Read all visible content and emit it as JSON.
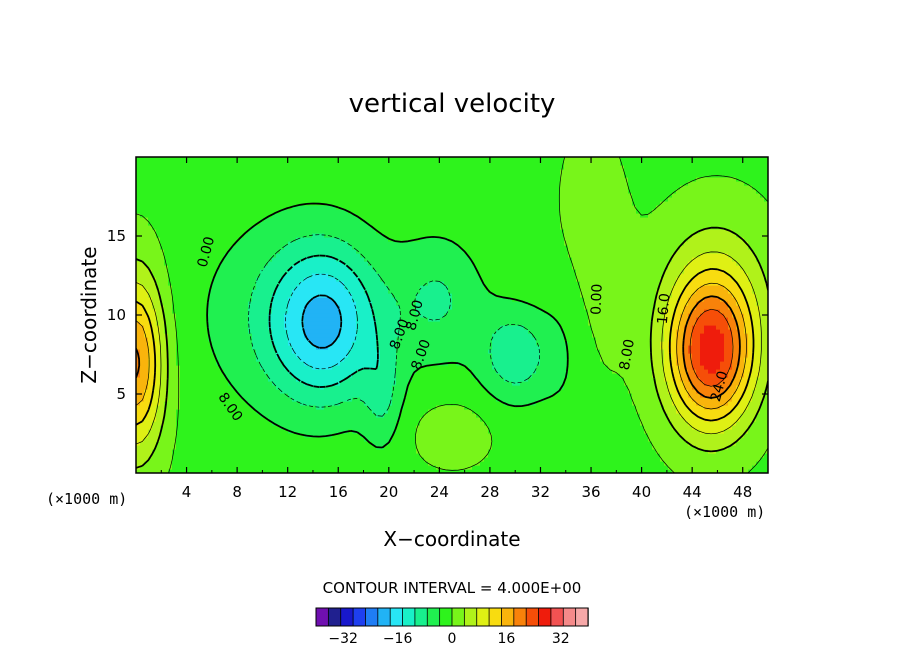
{
  "chart_data": {
    "type": "heatmap",
    "title": "vertical velocity",
    "xlabel": "X−coordinate",
    "ylabel": "Z−coordinate",
    "x_unit_label": "(×1000 m)",
    "z_unit_label": "(×1000 m)",
    "xlim": [
      0,
      50
    ],
    "ylim": [
      0,
      20
    ],
    "x_ticks": [
      4,
      8,
      12,
      16,
      20,
      24,
      28,
      32,
      36,
      40,
      44,
      48
    ],
    "y_ticks": [
      5,
      10,
      15
    ],
    "contour_interval_label": "CONTOUR INTERVAL = 4.000E+00",
    "contour_interval": 4,
    "contour_labels": [
      {
        "text": "0.00",
        "x": 5.5,
        "z": 14.0,
        "angle": -75
      },
      {
        "text": "0.00",
        "x": 36.4,
        "z": 11.0,
        "angle": -88
      },
      {
        "text": "8.00",
        "x": 7.5,
        "z": 4.2,
        "angle": 55
      },
      {
        "text": "8.00",
        "x": 22.0,
        "z": 10.0,
        "angle": -75
      },
      {
        "text": "8.00",
        "x": 22.5,
        "z": 7.5,
        "angle": -70
      },
      {
        "text": "8.00",
        "x": 38.8,
        "z": 7.5,
        "angle": -80
      },
      {
        "text": "8.00",
        "x": 20.8,
        "z": 8.8,
        "angle": -70
      },
      {
        "text": "16.0",
        "x": 41.7,
        "z": 10.4,
        "angle": -85
      },
      {
        "text": "24.0",
        "x": 46.1,
        "z": 5.5,
        "angle": -75
      }
    ],
    "colorbar": {
      "ticks": [
        -32,
        -16,
        0,
        16,
        32
      ],
      "min": -40,
      "max": 40,
      "colors": [
        "#6f0fb0",
        "#20208f",
        "#1818cc",
        "#1e3ff0",
        "#1f7df5",
        "#21b3f5",
        "#28e6f5",
        "#19f0c8",
        "#18f08e",
        "#20f050",
        "#2ef31c",
        "#78f51a",
        "#b0f21a",
        "#dff014",
        "#f8dc10",
        "#f9b40c",
        "#f8820a",
        "#f64e08",
        "#ef1c0c",
        "#f25252",
        "#f58a8a",
        "#f6a8a8"
      ]
    },
    "legend": "bottom-center"
  }
}
